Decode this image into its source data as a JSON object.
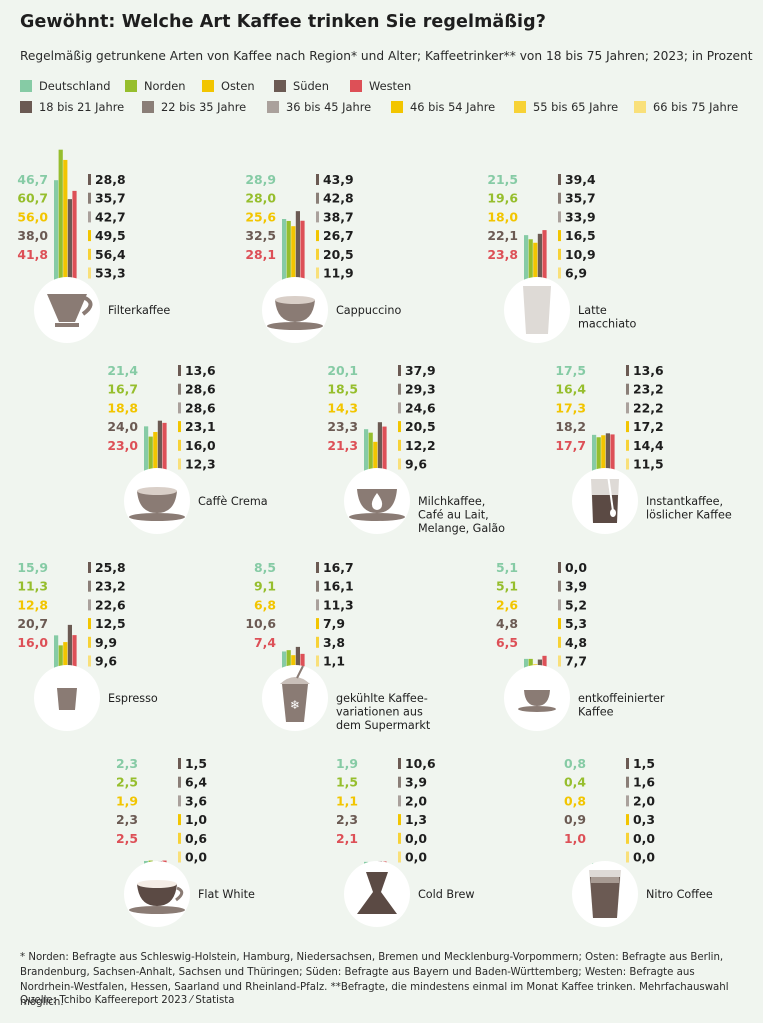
{
  "title": "Gewöhnt: Welche Art Kaffee trinken Sie regelmäßig?",
  "subtitle": "Regelmäßig getrunkene Arten von Kaffee nach Region* und Alter; Kaffeetrinker** von 18 bis 75 Jahren; 2023; in Prozent",
  "footnote": "* Norden: Befragte aus Schleswig-Holstein, Hamburg, Niedersachsen, Bremen und Mecklenburg-Vorpommern; Osten: Befragte aus Berlin, Brandenburg, Sachsen-Anhalt, Sachsen und Thüringen; Süden: Befragte aus Bayern und Baden-Württemberg; Westen: Befragte aus Nordrhein-Westfalen, Hessen, Saarland und Rheinland-Pfalz. **Befragte, die mindestens einmal im Monat Kaffee trinken. Mehrfachauswahl möglich.",
  "source": "Quelle: Tchibo Kaffeereport 2023 ⁄ Statista",
  "colors": {
    "regions": [
      "#86cba5",
      "#96be2d",
      "#f2c500",
      "#6b5a53",
      "#dd5057"
    ],
    "ages": [
      "#6b5a53",
      "#8a7e77",
      "#aaa19c",
      "#f2c500",
      "#f7d236",
      "#f9e07a"
    ],
    "icon_circle": "#ffffff",
    "icon_coffee": "#8a7b74"
  },
  "chart_data": {
    "type": "bar",
    "region_series": [
      "Deutschland",
      "Norden",
      "Osten",
      "Süden",
      "Westen"
    ],
    "age_series": [
      "18 bis 21 Jahre",
      "22 bis 35 Jahre",
      "36 bis 45 Jahre",
      "46 bis 54 Jahre",
      "55 bis 65 Jahre",
      "66 bis 75 Jahre"
    ],
    "categories": [
      {
        "label": "Filterkaffee",
        "icon": "filter-coffee-icon",
        "region": [
          46.7,
          60.7,
          56.0,
          38.0,
          41.8
        ],
        "region_text": [
          "46,7",
          "60,7",
          "56,0",
          "38,0",
          "41,8"
        ],
        "age": [
          28.8,
          35.7,
          42.7,
          49.5,
          56.4,
          53.3
        ],
        "age_text": [
          "28,8",
          "35,7",
          "42,7",
          "49,5",
          "56,4",
          "53,3"
        ]
      },
      {
        "label": "Cappuccino",
        "icon": "cappuccino-icon",
        "region": [
          28.9,
          28.0,
          25.6,
          32.5,
          28.1
        ],
        "region_text": [
          "28,9",
          "28,0",
          "25,6",
          "32,5",
          "28,1"
        ],
        "age": [
          43.9,
          42.8,
          38.7,
          26.7,
          20.5,
          11.9
        ],
        "age_text": [
          "43,9",
          "42,8",
          "38,7",
          "26,7",
          "20,5",
          "11,9"
        ]
      },
      {
        "label": "Latte macchiato",
        "icon": "latte-macchiato-icon",
        "region": [
          21.5,
          19.6,
          18.0,
          22.1,
          23.8
        ],
        "region_text": [
          "21,5",
          "19,6",
          "18,0",
          "22,1",
          "23,8"
        ],
        "age": [
          39.4,
          35.7,
          33.9,
          16.5,
          10.9,
          6.9
        ],
        "age_text": [
          "39,4",
          "35,7",
          "33,9",
          "16,5",
          "10,9",
          "6,9"
        ]
      },
      {
        "label": "Caffè Crema",
        "icon": "caffe-crema-icon",
        "region": [
          21.4,
          16.7,
          18.8,
          24.0,
          23.0
        ],
        "region_text": [
          "21,4",
          "16,7",
          "18,8",
          "24,0",
          "23,0"
        ],
        "age": [
          13.6,
          28.6,
          28.6,
          23.1,
          16.0,
          12.3
        ],
        "age_text": [
          "13,6",
          "28,6",
          "28,6",
          "23,1",
          "16,0",
          "12,3"
        ]
      },
      {
        "label": "Milchkaffee, Café au Lait, Melange, Galão",
        "icon": "milk-coffee-icon",
        "region": [
          20.1,
          18.5,
          14.3,
          23.3,
          21.3
        ],
        "region_text": [
          "20,1",
          "18,5",
          "14,3",
          "23,3",
          "21,3"
        ],
        "age": [
          37.9,
          29.3,
          24.6,
          20.5,
          12.2,
          9.6
        ],
        "age_text": [
          "37,9",
          "29,3",
          "24,6",
          "20,5",
          "12,2",
          "9,6"
        ]
      },
      {
        "label": "Instantkaffee, löslicher Kaffee",
        "icon": "instant-coffee-icon",
        "region": [
          17.5,
          16.4,
          17.3,
          18.2,
          17.7
        ],
        "region_text": [
          "17,5",
          "16,4",
          "17,3",
          "18,2",
          "17,7"
        ],
        "age": [
          13.6,
          23.2,
          22.2,
          17.2,
          14.4,
          11.5
        ],
        "age_text": [
          "13,6",
          "23,2",
          "22,2",
          "17,2",
          "14,4",
          "11,5"
        ]
      },
      {
        "label": "Espresso",
        "icon": "espresso-icon",
        "region": [
          15.9,
          11.3,
          12.8,
          20.7,
          16.0
        ],
        "region_text": [
          "15,9",
          "11,3",
          "12,8",
          "20,7",
          "16,0"
        ],
        "age": [
          25.8,
          23.2,
          22.6,
          12.5,
          9.9,
          9.6
        ],
        "age_text": [
          "25,8",
          "23,2",
          "22,6",
          "12,5",
          "9,9",
          "9,6"
        ]
      },
      {
        "label": "gekühlte Kaffee-variationen aus dem Supermarkt",
        "icon": "iced-coffee-icon",
        "region": [
          8.5,
          9.1,
          6.8,
          10.6,
          7.4
        ],
        "region_text": [
          "8,5",
          "9,1",
          "6,8",
          "10,6",
          "7,4"
        ],
        "age": [
          16.7,
          16.1,
          11.3,
          7.9,
          3.8,
          1.1
        ],
        "age_text": [
          "16,7",
          "16,1",
          "11,3",
          "7,9",
          "3,8",
          "1,1"
        ]
      },
      {
        "label": "entkoffeinierter Kaffee",
        "icon": "decaf-coffee-icon",
        "region": [
          5.1,
          5.1,
          2.6,
          4.8,
          6.5
        ],
        "region_text": [
          "5,1",
          "5,1",
          "2,6",
          "4,8",
          "6,5"
        ],
        "age": [
          0.0,
          3.9,
          5.2,
          5.3,
          4.8,
          7.7
        ],
        "age_text": [
          "0,0",
          "3,9",
          "5,2",
          "5,3",
          "4,8",
          "7,7"
        ]
      },
      {
        "label": "Flat White",
        "icon": "flat-white-icon",
        "region": [
          2.3,
          2.5,
          1.9,
          2.3,
          2.5
        ],
        "region_text": [
          "2,3",
          "2,5",
          "1,9",
          "2,3",
          "2,5"
        ],
        "age": [
          1.5,
          6.4,
          3.6,
          1.0,
          0.6,
          0.0
        ],
        "age_text": [
          "1,5",
          "6,4",
          "3,6",
          "1,0",
          "0,6",
          "0,0"
        ]
      },
      {
        "label": "Cold Brew",
        "icon": "cold-brew-icon",
        "region": [
          1.9,
          1.5,
          1.1,
          2.3,
          2.1
        ],
        "region_text": [
          "1,9",
          "1,5",
          "1,1",
          "2,3",
          "2,1"
        ],
        "age": [
          10.6,
          3.9,
          2.0,
          1.3,
          0.0,
          0.0
        ],
        "age_text": [
          "10,6",
          "3,9",
          "2,0",
          "1,3",
          "0,0",
          "0,0"
        ]
      },
      {
        "label": "Nitro Coffee",
        "icon": "nitro-coffee-icon",
        "region": [
          0.8,
          0.4,
          0.8,
          0.9,
          1.0
        ],
        "region_text": [
          "0,8",
          "0,4",
          "0,8",
          "0,9",
          "1,0"
        ],
        "age": [
          1.5,
          1.6,
          2.0,
          0.3,
          0.0,
          0.0
        ],
        "age_text": [
          "1,5",
          "1,6",
          "2,0",
          "0,3",
          "0,0",
          "0,0"
        ]
      }
    ]
  }
}
